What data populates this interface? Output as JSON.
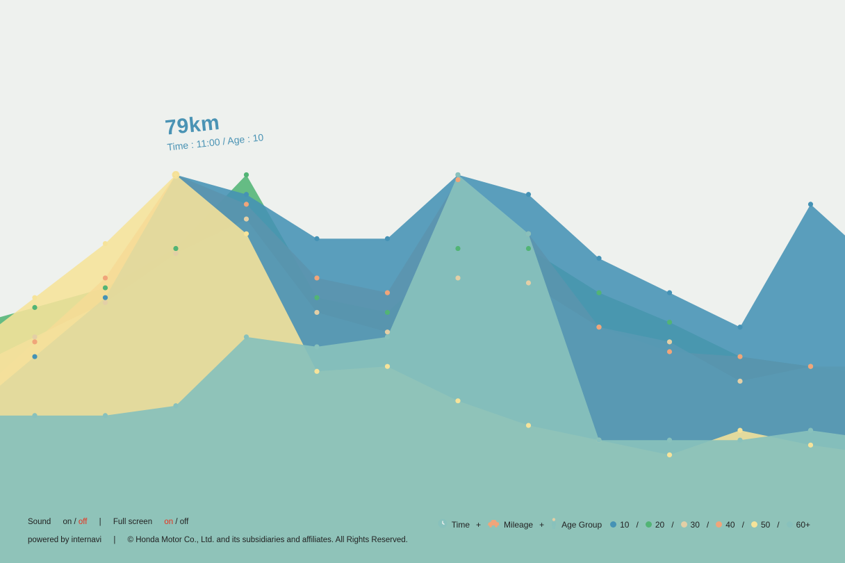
{
  "tooltip": {
    "value": "79km",
    "detail": "Time : 11:00 / Age : 10"
  },
  "footer": {
    "sound_label": "Sound",
    "sound_on": "on",
    "sound_slash": "/",
    "sound_off": "off",
    "divider": "|",
    "fullscreen_label": "Full screen",
    "fullscreen_on": "on",
    "fullscreen_slash": "/",
    "fullscreen_off": "off",
    "powered": "powered by internavi",
    "copyright": "© Honda Motor Co., Ltd. and its subsidiaries and affiliates. All Rights Reserved."
  },
  "legend": {
    "time": "Time",
    "plus": "+",
    "mileage": "Mileage",
    "age_group": "Age Group",
    "slash": "/",
    "ages": [
      {
        "label": "10",
        "color": "#4592b5"
      },
      {
        "label": "20",
        "color": "#52b475"
      },
      {
        "label": "30",
        "color": "#e3cfa6"
      },
      {
        "label": "40",
        "color": "#f0a57a"
      },
      {
        "label": "50",
        "color": "#f6e39a"
      },
      {
        "label": "60+",
        "color": "#88c1bc"
      }
    ]
  },
  "icons": {
    "time": "clock-icon",
    "mileage": "car-icon",
    "age": "person-icon"
  },
  "chart_data": {
    "type": "area",
    "x": [
      null,
      null,
      null,
      null,
      null,
      null,
      null,
      null,
      null,
      null,
      null,
      null,
      null
    ],
    "series": [
      {
        "name": "10",
        "color": "#4592b5",
        "values": [
          42,
          54,
          79,
          75,
          66,
          66,
          79,
          75,
          62,
          55,
          48,
          73,
          60
        ]
      },
      {
        "name": "20",
        "color": "#52b475",
        "values": [
          52,
          56,
          64,
          79,
          54,
          51,
          64,
          64,
          55,
          49,
          42,
          40,
          30
        ]
      },
      {
        "name": "30",
        "color": "#e3cfa6",
        "values": [
          46,
          53,
          63,
          70,
          51,
          47,
          58,
          57,
          48,
          45,
          37,
          40,
          40
        ]
      },
      {
        "name": "40",
        "color": "#f0a57a",
        "values": [
          45,
          58,
          79,
          73,
          58,
          55,
          78,
          67,
          48,
          43,
          42,
          40,
          38
        ]
      },
      {
        "name": "50",
        "color": "#f6e39a",
        "values": [
          54,
          65,
          79,
          67,
          39,
          40,
          33,
          28,
          25,
          22,
          27,
          24,
          22
        ]
      },
      {
        "name": "60+",
        "color": "#88c1bc",
        "values": [
          30,
          30,
          32,
          46,
          44,
          46,
          79,
          67,
          25,
          25,
          25,
          27,
          25
        ]
      }
    ],
    "highlight": {
      "series": "10",
      "index": 2,
      "value": 79
    }
  }
}
